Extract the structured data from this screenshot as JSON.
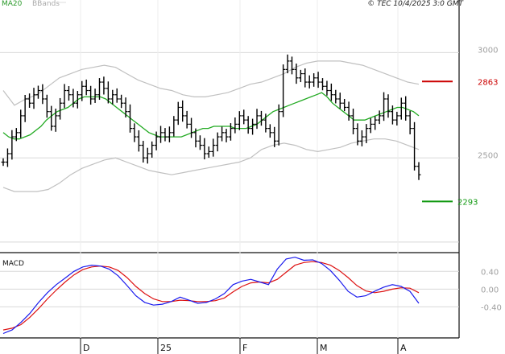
{
  "header": {
    "ma_label": "MA20",
    "bb_label": "BBands",
    "copyright": "© TEC 10/4/2025 3:0 GMT"
  },
  "macd_label": "MACD",
  "colors": {
    "price_bars": "#000000",
    "ma20": "#22aa22",
    "bbands": "#c0c0c0",
    "macd": "#1a1aee",
    "signal": "#dd1111",
    "resistance": "#cc0000",
    "support": "#119911",
    "grid": "#d8d8d8"
  },
  "chart_data": [
    {
      "type": "bar",
      "subtype": "ohlc",
      "panel": "price",
      "x_ticks": [
        "D",
        "25",
        "F",
        "M",
        "A"
      ],
      "y_ticks": [
        "3000",
        "2500"
      ],
      "ylim": [
        2050,
        3250
      ],
      "levels": [
        {
          "name": "resistance",
          "value": 2863,
          "label": "2863"
        },
        {
          "name": "support",
          "value": 2293,
          "label": "2293"
        }
      ],
      "grid": true,
      "legend": "top-left",
      "close_series": [
        2480,
        2520,
        2600,
        2620,
        2700,
        2780,
        2760,
        2800,
        2820,
        2780,
        2720,
        2650,
        2700,
        2760,
        2820,
        2800,
        2760,
        2800,
        2840,
        2820,
        2780,
        2800,
        2860,
        2830,
        2780,
        2800,
        2780,
        2760,
        2720,
        2640,
        2600,
        2560,
        2500,
        2520,
        2560,
        2600,
        2620,
        2600,
        2620,
        2680,
        2740,
        2700,
        2660,
        2620,
        2580,
        2560,
        2520,
        2530,
        2560,
        2600,
        2620,
        2600,
        2640,
        2660,
        2700,
        2680,
        2640,
        2660,
        2700,
        2680,
        2640,
        2620,
        2580,
        2720,
        2920,
        2960,
        2920,
        2880,
        2900,
        2860,
        2860,
        2880,
        2860,
        2840,
        2820,
        2800,
        2780,
        2760,
        2740,
        2700,
        2640,
        2580,
        2600,
        2640,
        2660,
        2680,
        2700,
        2780,
        2720,
        2680,
        2700,
        2760,
        2700,
        2640,
        2460,
        2420
      ],
      "ma20_series": [
        2620,
        2600,
        2590,
        2590,
        2600,
        2610,
        2630,
        2650,
        2680,
        2700,
        2720,
        2730,
        2740,
        2760,
        2780,
        2790,
        2790,
        2790,
        2790,
        2780,
        2760,
        2740,
        2720,
        2700,
        2680,
        2660,
        2640,
        2620,
        2610,
        2600,
        2600,
        2600,
        2600,
        2600,
        2610,
        2620,
        2630,
        2640,
        2640,
        2650,
        2650,
        2650,
        2650,
        2640,
        2640,
        2640,
        2650,
        2660,
        2680,
        2700,
        2720,
        2730,
        2740,
        2750,
        2760,
        2770,
        2780,
        2790,
        2800,
        2810,
        2790,
        2760,
        2740,
        2720,
        2700,
        2680,
        2680,
        2680,
        2690,
        2700,
        2710,
        2720,
        2730,
        2740,
        2740,
        2730,
        2720,
        2700
      ],
      "bb_upper_series": [
        2820,
        2750,
        2780,
        2800,
        2840,
        2880,
        2900,
        2920,
        2930,
        2940,
        2930,
        2900,
        2870,
        2850,
        2830,
        2820,
        2800,
        2790,
        2790,
        2800,
        2810,
        2830,
        2850,
        2860,
        2880,
        2900,
        2930,
        2950,
        2960,
        2960,
        2960,
        2950,
        2940,
        2920,
        2900,
        2880,
        2860,
        2850
      ],
      "bb_lower_series": [
        2360,
        2340,
        2340,
        2340,
        2350,
        2380,
        2420,
        2450,
        2470,
        2490,
        2500,
        2480,
        2460,
        2440,
        2430,
        2420,
        2430,
        2440,
        2450,
        2460,
        2470,
        2480,
        2500,
        2540,
        2560,
        2570,
        2560,
        2540,
        2530,
        2540,
        2550,
        2570,
        2580,
        2590,
        2590,
        2580,
        2560,
        2540
      ]
    },
    {
      "type": "line",
      "panel": "macd",
      "y_ticks": [
        "0.40",
        "0.00",
        "-0.40"
      ],
      "ylim": [
        -1.1,
        0.75
      ],
      "series": [
        {
          "name": "MACD",
          "values": [
            -1.0,
            -0.92,
            -0.75,
            -0.55,
            -0.3,
            -0.08,
            0.1,
            0.25,
            0.4,
            0.5,
            0.54,
            0.52,
            0.45,
            0.3,
            0.08,
            -0.15,
            -0.3,
            -0.36,
            -0.34,
            -0.28,
            -0.18,
            -0.25,
            -0.32,
            -0.3,
            -0.22,
            -0.1,
            0.1,
            0.18,
            0.22,
            0.16,
            0.1,
            0.45,
            0.68,
            0.72,
            0.65,
            0.66,
            0.58,
            0.42,
            0.2,
            -0.05,
            -0.18,
            -0.15,
            -0.05,
            0.04,
            0.1,
            0.06,
            -0.05,
            -0.32
          ]
        },
        {
          "name": "Signal",
          "values": [
            -0.92,
            -0.88,
            -0.8,
            -0.64,
            -0.44,
            -0.22,
            -0.02,
            0.16,
            0.32,
            0.44,
            0.5,
            0.52,
            0.5,
            0.42,
            0.26,
            0.06,
            -0.1,
            -0.22,
            -0.28,
            -0.28,
            -0.25,
            -0.26,
            -0.28,
            -0.28,
            -0.26,
            -0.2,
            -0.06,
            0.06,
            0.14,
            0.16,
            0.14,
            0.22,
            0.38,
            0.54,
            0.6,
            0.62,
            0.6,
            0.54,
            0.42,
            0.26,
            0.08,
            -0.04,
            -0.08,
            -0.05,
            0.0,
            0.03,
            0.02,
            -0.08
          ]
        }
      ]
    }
  ]
}
